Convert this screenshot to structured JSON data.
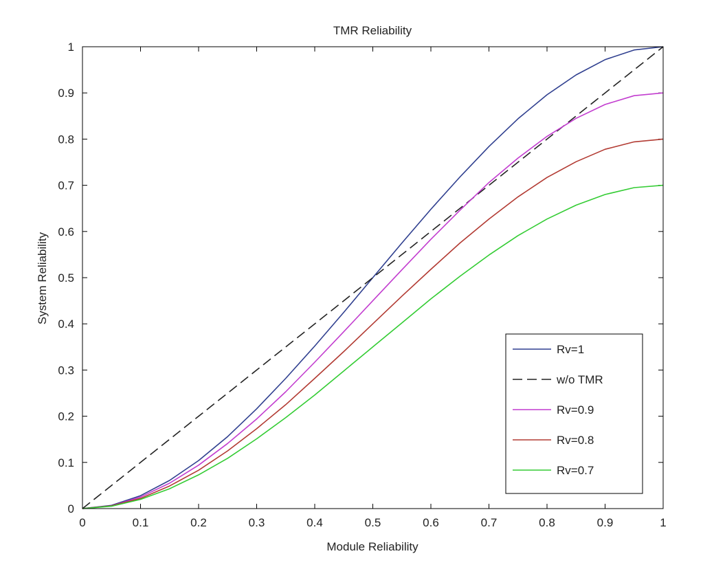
{
  "chart_data": {
    "type": "line",
    "title": "TMR Reliability",
    "xlabel": "Module Reliability",
    "ylabel": "System Reliability",
    "xlim": [
      0,
      1
    ],
    "ylim": [
      0,
      1
    ],
    "xticks": [
      "0",
      "0.1",
      "0.2",
      "0.3",
      "0.4",
      "0.5",
      "0.6",
      "0.7",
      "0.8",
      "0.9",
      "1"
    ],
    "yticks": [
      "0",
      "0.1",
      "0.2",
      "0.3",
      "0.4",
      "0.5",
      "0.6",
      "0.7",
      "0.8",
      "0.9",
      "1"
    ],
    "grid": false,
    "legend_position": "lower-right",
    "x": [
      0,
      0.05,
      0.1,
      0.15,
      0.2,
      0.25,
      0.3,
      0.35,
      0.4,
      0.45,
      0.5,
      0.55,
      0.6,
      0.65,
      0.7,
      0.75,
      0.8,
      0.85,
      0.9,
      0.95,
      1
    ],
    "series": [
      {
        "name": "Rv=1",
        "color": "#2f3f8f",
        "dash": "solid",
        "values": [
          0,
          0.007,
          0.028,
          0.061,
          0.104,
          0.156,
          0.216,
          0.282,
          0.352,
          0.425,
          0.5,
          0.575,
          0.648,
          0.718,
          0.784,
          0.844,
          0.896,
          0.939,
          0.972,
          0.993,
          1
        ]
      },
      {
        "name": "w/o TMR",
        "color": "#222222",
        "dash": "dashed",
        "values": [
          0,
          0.05,
          0.1,
          0.15,
          0.2,
          0.25,
          0.3,
          0.35,
          0.4,
          0.45,
          0.5,
          0.55,
          0.6,
          0.65,
          0.7,
          0.75,
          0.8,
          0.85,
          0.9,
          0.95,
          1
        ]
      },
      {
        "name": "Rv=0.9",
        "color": "#c23ccf",
        "dash": "solid",
        "values": [
          0,
          0.006,
          0.025,
          0.055,
          0.094,
          0.141,
          0.194,
          0.253,
          0.317,
          0.383,
          0.45,
          0.517,
          0.583,
          0.646,
          0.706,
          0.759,
          0.806,
          0.845,
          0.875,
          0.894,
          0.9
        ]
      },
      {
        "name": "Rv=0.8",
        "color": "#b23a32",
        "dash": "solid",
        "values": [
          0,
          0.006,
          0.022,
          0.049,
          0.083,
          0.125,
          0.173,
          0.225,
          0.282,
          0.34,
          0.4,
          0.46,
          0.518,
          0.575,
          0.627,
          0.675,
          0.717,
          0.751,
          0.778,
          0.794,
          0.8
        ]
      },
      {
        "name": "Rv=0.7",
        "color": "#33cc33",
        "dash": "solid",
        "values": [
          0,
          0.005,
          0.02,
          0.043,
          0.073,
          0.109,
          0.151,
          0.197,
          0.246,
          0.298,
          0.35,
          0.402,
          0.454,
          0.503,
          0.549,
          0.591,
          0.627,
          0.657,
          0.68,
          0.695,
          0.7
        ]
      }
    ]
  }
}
